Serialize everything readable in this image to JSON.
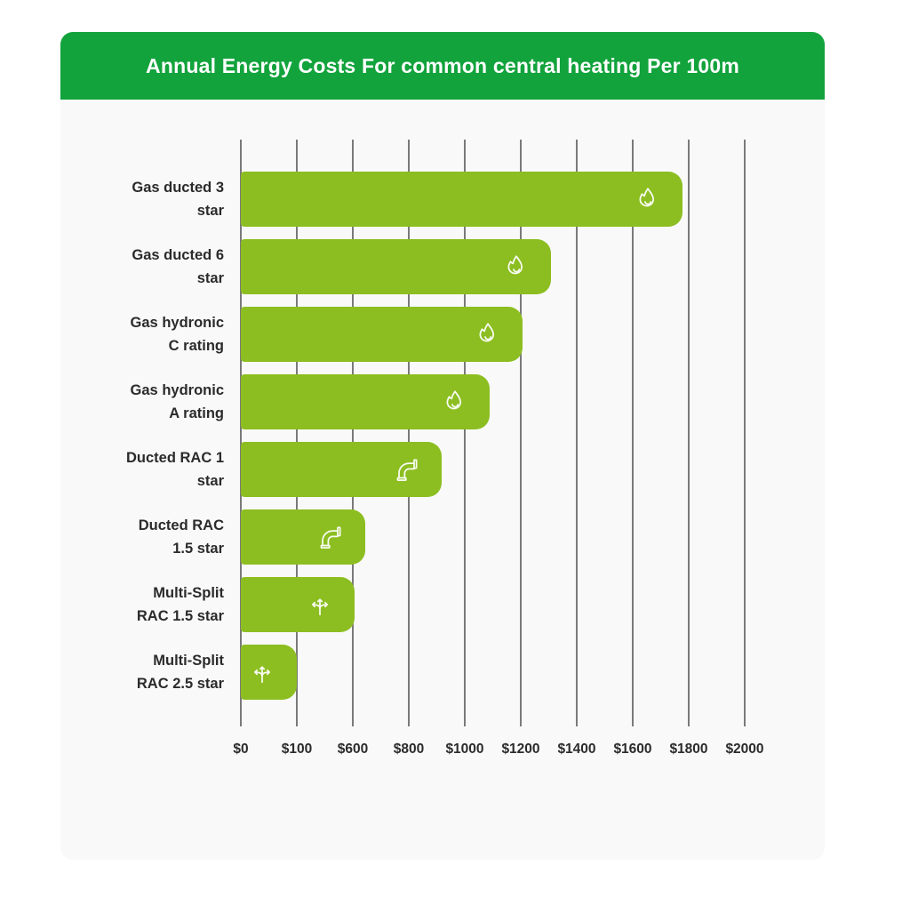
{
  "page": {
    "background_color": "#ffffff"
  },
  "header": {
    "title": "Annual Energy Costs For common central heating Per 100m",
    "bg_color": "#12a33c",
    "text_color": "#ffffff"
  },
  "panel": {
    "bg_color": "#f9f9f9"
  },
  "chart_data": {
    "type": "bar",
    "orientation": "horizontal",
    "title": "Annual Energy Costs For common central heating Per 100m",
    "categories": [
      "Gas ducted 3 star",
      "Gas ducted 6 star",
      "Gas hydronic C rating",
      "Gas hydronic A rating",
      "Ducted RAC 1 star",
      "Ducted RAC 1.5 star",
      "Multi-Split RAC 1.5 star",
      "Multi-Split RAC 2.5 star"
    ],
    "category_lines": [
      [
        "Gas ducted 3",
        "star"
      ],
      [
        "Gas ducted 6",
        "star"
      ],
      [
        "Gas hydronic",
        "C rating"
      ],
      [
        "Gas hydronic",
        "A rating"
      ],
      [
        "Ducted RAC 1",
        "star"
      ],
      [
        "Ducted RAC",
        "1.5 star"
      ],
      [
        "Multi-Split",
        "RAC 1.5 star"
      ],
      [
        "Multi-Split",
        "RAC 2.5 star"
      ]
    ],
    "values": [
      1775,
      1310,
      1205,
      1090,
      920,
      645,
      595,
      100
    ],
    "bar_axis_fractions": [
      0.877,
      0.616,
      0.559,
      0.494,
      0.399,
      0.247,
      0.226,
      0.111
    ],
    "icons": [
      "flame-icon",
      "flame-icon",
      "flame-icon",
      "flame-icon",
      "pipe-elbow-icon",
      "pipe-elbow-icon",
      "multi-split-arrows-icon",
      "multi-split-arrows-icon"
    ],
    "x_tick_labels": [
      "$0",
      "$100",
      "$600",
      "$800",
      "$1000",
      "$1200",
      "$1400",
      "$1600",
      "$1800",
      "$2000"
    ],
    "xlim": [
      0,
      2000
    ],
    "grid": true,
    "legend": false,
    "bar_color": "#8cbe21",
    "gridline_color": "#7a7a7a",
    "label_color": "#2b2b2b",
    "icon_color": "#ffffff"
  }
}
